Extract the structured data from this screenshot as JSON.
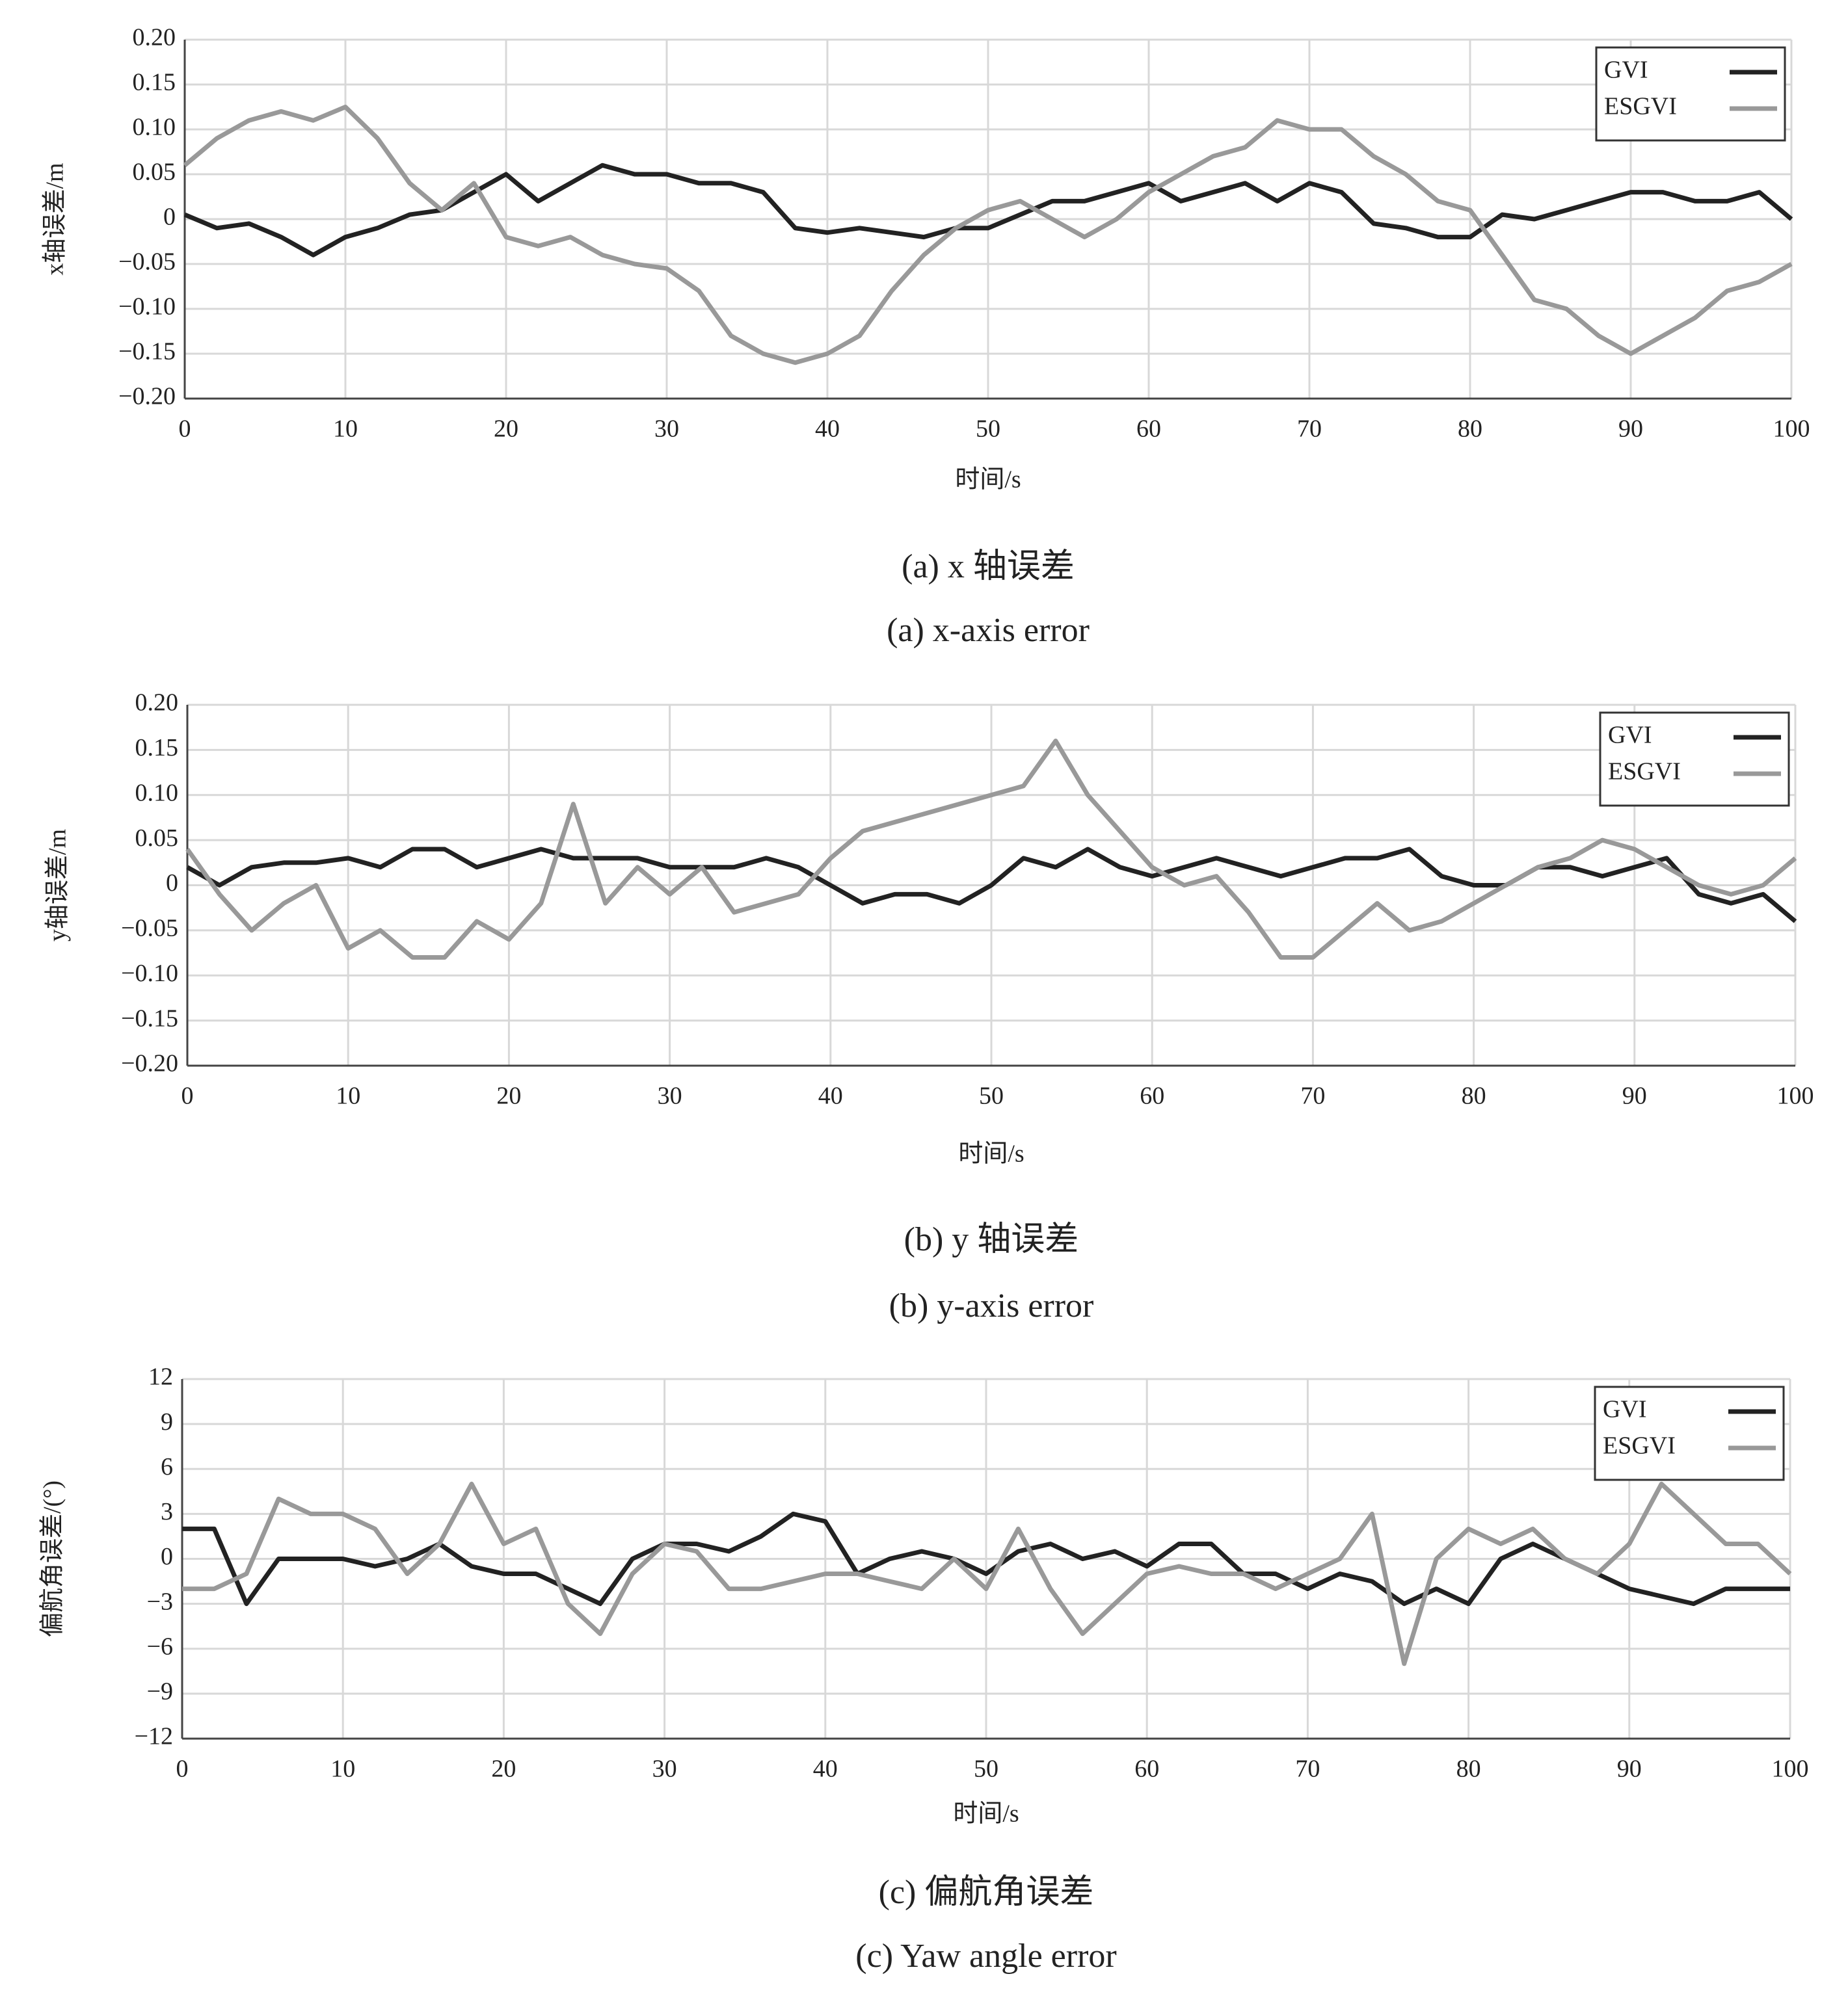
{
  "chart_data": [
    {
      "type": "line",
      "caption": "(a) x 轴误差",
      "caption_en": "(a) x-axis error",
      "xlabel": "时间/s",
      "ylabel": "x轴误差/m",
      "x": [
        0,
        2,
        4,
        6,
        8,
        10,
        12,
        14,
        16,
        18,
        20,
        22,
        24,
        26,
        28,
        30,
        32,
        34,
        36,
        38,
        40,
        42,
        44,
        46,
        48,
        50,
        52,
        54,
        56,
        58,
        60,
        62,
        64,
        66,
        68,
        70,
        72,
        74,
        76,
        78,
        80,
        82,
        84,
        86,
        88,
        90,
        92,
        94,
        96,
        98,
        100
      ],
      "series": [
        {
          "name": "GVI",
          "color": "#222222",
          "values": [
            0.005,
            -0.01,
            -0.005,
            -0.02,
            -0.04,
            -0.02,
            -0.01,
            0.005,
            0.01,
            0.03,
            0.05,
            0.02,
            0.04,
            0.06,
            0.05,
            0.05,
            0.04,
            0.04,
            0.03,
            -0.01,
            -0.015,
            -0.01,
            -0.015,
            -0.02,
            -0.01,
            -0.01,
            0.005,
            0.02,
            0.02,
            0.03,
            0.04,
            0.02,
            0.03,
            0.04,
            0.02,
            0.04,
            0.03,
            -0.005,
            -0.01,
            -0.02,
            -0.02,
            0.005,
            0,
            0.01,
            0.02,
            0.03,
            0.03,
            0.02,
            0.02,
            0.03,
            0
          ]
        },
        {
          "name": "ESGVI",
          "color": "#999999",
          "values": [
            0.06,
            0.09,
            0.11,
            0.12,
            0.11,
            0.125,
            0.09,
            0.04,
            0.01,
            0.04,
            -0.02,
            -0.03,
            -0.02,
            -0.04,
            -0.05,
            -0.055,
            -0.08,
            -0.13,
            -0.15,
            -0.16,
            -0.15,
            -0.13,
            -0.08,
            -0.04,
            -0.01,
            0.01,
            0.02,
            0,
            -0.02,
            0,
            0.03,
            0.05,
            0.07,
            0.08,
            0.11,
            0.1,
            0.1,
            0.07,
            0.05,
            0.02,
            0.01,
            -0.04,
            -0.09,
            -0.1,
            -0.13,
            -0.15,
            -0.13,
            -0.11,
            -0.08,
            -0.07,
            -0.05
          ]
        }
      ],
      "xlim": [
        0,
        100
      ],
      "xticks": [
        0,
        10,
        20,
        30,
        40,
        50,
        60,
        70,
        80,
        90,
        100
      ],
      "ylim": [
        -0.2,
        0.2
      ],
      "yticks": [
        {
          "value": 0.2,
          "label": "0.20"
        },
        {
          "value": 0.15,
          "label": "0.15"
        },
        {
          "value": 0.1,
          "label": "0.10"
        },
        {
          "value": 0.05,
          "label": "0.05"
        },
        0,
        {
          "value": -0.05,
          "label": "−0.05"
        },
        {
          "value": -0.1,
          "label": "−0.10"
        },
        {
          "value": -0.15,
          "label": "−0.15"
        },
        {
          "value": -0.2,
          "label": "−0.20"
        }
      ],
      "grid": true,
      "legend": "upper right"
    },
    {
      "type": "line",
      "caption": "(b) y 轴误差",
      "caption_en": "(b) y-axis error",
      "xlabel": "时间/s",
      "ylabel": "y轴误差/m",
      "x": [
        0,
        2,
        4,
        6,
        8,
        10,
        12,
        14,
        16,
        18,
        20,
        22,
        24,
        26,
        28,
        30,
        32,
        34,
        36,
        38,
        40,
        42,
        44,
        46,
        48,
        50,
        52,
        54,
        56,
        58,
        60,
        62,
        64,
        66,
        68,
        70,
        72,
        74,
        76,
        78,
        80,
        82,
        84,
        86,
        88,
        90,
        92,
        94,
        96,
        98,
        100
      ],
      "series": [
        {
          "name": "GVI",
          "color": "#222222",
          "values": [
            0.02,
            0,
            0.02,
            0.025,
            0.025,
            0.03,
            0.02,
            0.04,
            0.04,
            0.02,
            0.03,
            0.04,
            0.03,
            0.03,
            0.03,
            0.02,
            0.02,
            0.02,
            0.03,
            0.02,
            0,
            -0.02,
            -0.01,
            -0.01,
            -0.02,
            0,
            0.03,
            0.02,
            0.04,
            0.02,
            0.01,
            0.02,
            0.03,
            0.02,
            0.01,
            0.02,
            0.03,
            0.03,
            0.04,
            0.01,
            0,
            0,
            0.02,
            0.02,
            0.01,
            0.02,
            0.03,
            -0.01,
            -0.02,
            -0.01,
            -0.04
          ]
        },
        {
          "name": "ESGVI",
          "color": "#999999",
          "values": [
            0.04,
            -0.01,
            -0.05,
            -0.02,
            0,
            -0.07,
            -0.05,
            -0.08,
            -0.08,
            -0.04,
            -0.06,
            -0.02,
            0.09,
            -0.02,
            0.02,
            -0.01,
            0.02,
            -0.03,
            -0.02,
            -0.01,
            0.03,
            0.06,
            0.07,
            0.08,
            0.09,
            0.1,
            0.11,
            0.16,
            0.1,
            0.06,
            0.02,
            0,
            0.01,
            -0.03,
            -0.08,
            -0.08,
            -0.05,
            -0.02,
            -0.05,
            -0.04,
            -0.02,
            0,
            0.02,
            0.03,
            0.05,
            0.04,
            0.02,
            0,
            -0.01,
            0,
            0.03
          ]
        }
      ],
      "xlim": [
        0,
        100
      ],
      "xticks": [
        0,
        10,
        20,
        30,
        40,
        50,
        60,
        70,
        80,
        90,
        100
      ],
      "ylim": [
        -0.2,
        0.2
      ],
      "yticks": [
        {
          "value": 0.2,
          "label": "0.20"
        },
        {
          "value": 0.15,
          "label": "0.15"
        },
        {
          "value": 0.1,
          "label": "0.10"
        },
        {
          "value": 0.05,
          "label": "0.05"
        },
        0,
        {
          "value": -0.05,
          "label": "−0.05"
        },
        {
          "value": -0.1,
          "label": "−0.10"
        },
        {
          "value": -0.15,
          "label": "−0.15"
        },
        {
          "value": -0.2,
          "label": "−0.20"
        }
      ],
      "grid": true,
      "legend": "upper right"
    },
    {
      "type": "line",
      "caption": "(c) 偏航角误差",
      "caption_en": "(c) Yaw angle error",
      "xlabel": "时间/s",
      "ylabel": "偏航角误差/(°)",
      "x": [
        0,
        2,
        4,
        6,
        8,
        10,
        12,
        14,
        16,
        18,
        20,
        22,
        24,
        26,
        28,
        30,
        32,
        34,
        36,
        38,
        40,
        42,
        44,
        46,
        48,
        50,
        52,
        54,
        56,
        58,
        60,
        62,
        64,
        66,
        68,
        70,
        72,
        74,
        76,
        78,
        80,
        82,
        84,
        86,
        88,
        90,
        92,
        94,
        96,
        98,
        100
      ],
      "series": [
        {
          "name": "GVI",
          "color": "#222222",
          "values": [
            2,
            2,
            -3,
            0,
            0,
            0,
            -0.5,
            0,
            1,
            -0.5,
            -1,
            -1,
            -2,
            -3,
            0,
            1,
            1,
            0.5,
            1.5,
            3,
            2.5,
            -1,
            0,
            0.5,
            0,
            -1,
            0.5,
            1,
            0,
            0.5,
            -0.5,
            1,
            1,
            -1,
            -1,
            -2,
            -1,
            -1.5,
            -3,
            -2,
            -3,
            0,
            1,
            0,
            -1,
            -2,
            -2.5,
            -3,
            -2,
            -2,
            -2
          ]
        },
        {
          "name": "ESGVI",
          "color": "#999999",
          "values": [
            -2,
            -2,
            -1,
            4,
            3,
            3,
            2,
            -1,
            1,
            5,
            1,
            2,
            -3,
            -5,
            -1,
            1,
            0.5,
            -2,
            -2,
            -1.5,
            -1,
            -1,
            -1.5,
            -2,
            0,
            -2,
            2,
            -2,
            -5,
            -3,
            -1,
            -0.5,
            -1,
            -1,
            -2,
            -1,
            0,
            3,
            -7,
            0,
            2,
            1,
            2,
            0,
            -1,
            1,
            5,
            3,
            1,
            1,
            -1
          ]
        }
      ],
      "xlim": [
        0,
        100
      ],
      "xticks": [
        0,
        10,
        20,
        30,
        40,
        50,
        60,
        70,
        80,
        90,
        100
      ],
      "ylim": [
        -12,
        12
      ],
      "yticks": [
        12,
        9,
        6,
        3,
        0,
        {
          "value": -3,
          "label": "−3"
        },
        {
          "value": -6,
          "label": "−6"
        },
        {
          "value": -9,
          "label": "−9"
        },
        {
          "value": -12,
          "label": "−12"
        }
      ],
      "grid": true,
      "legend": "upper right"
    }
  ]
}
